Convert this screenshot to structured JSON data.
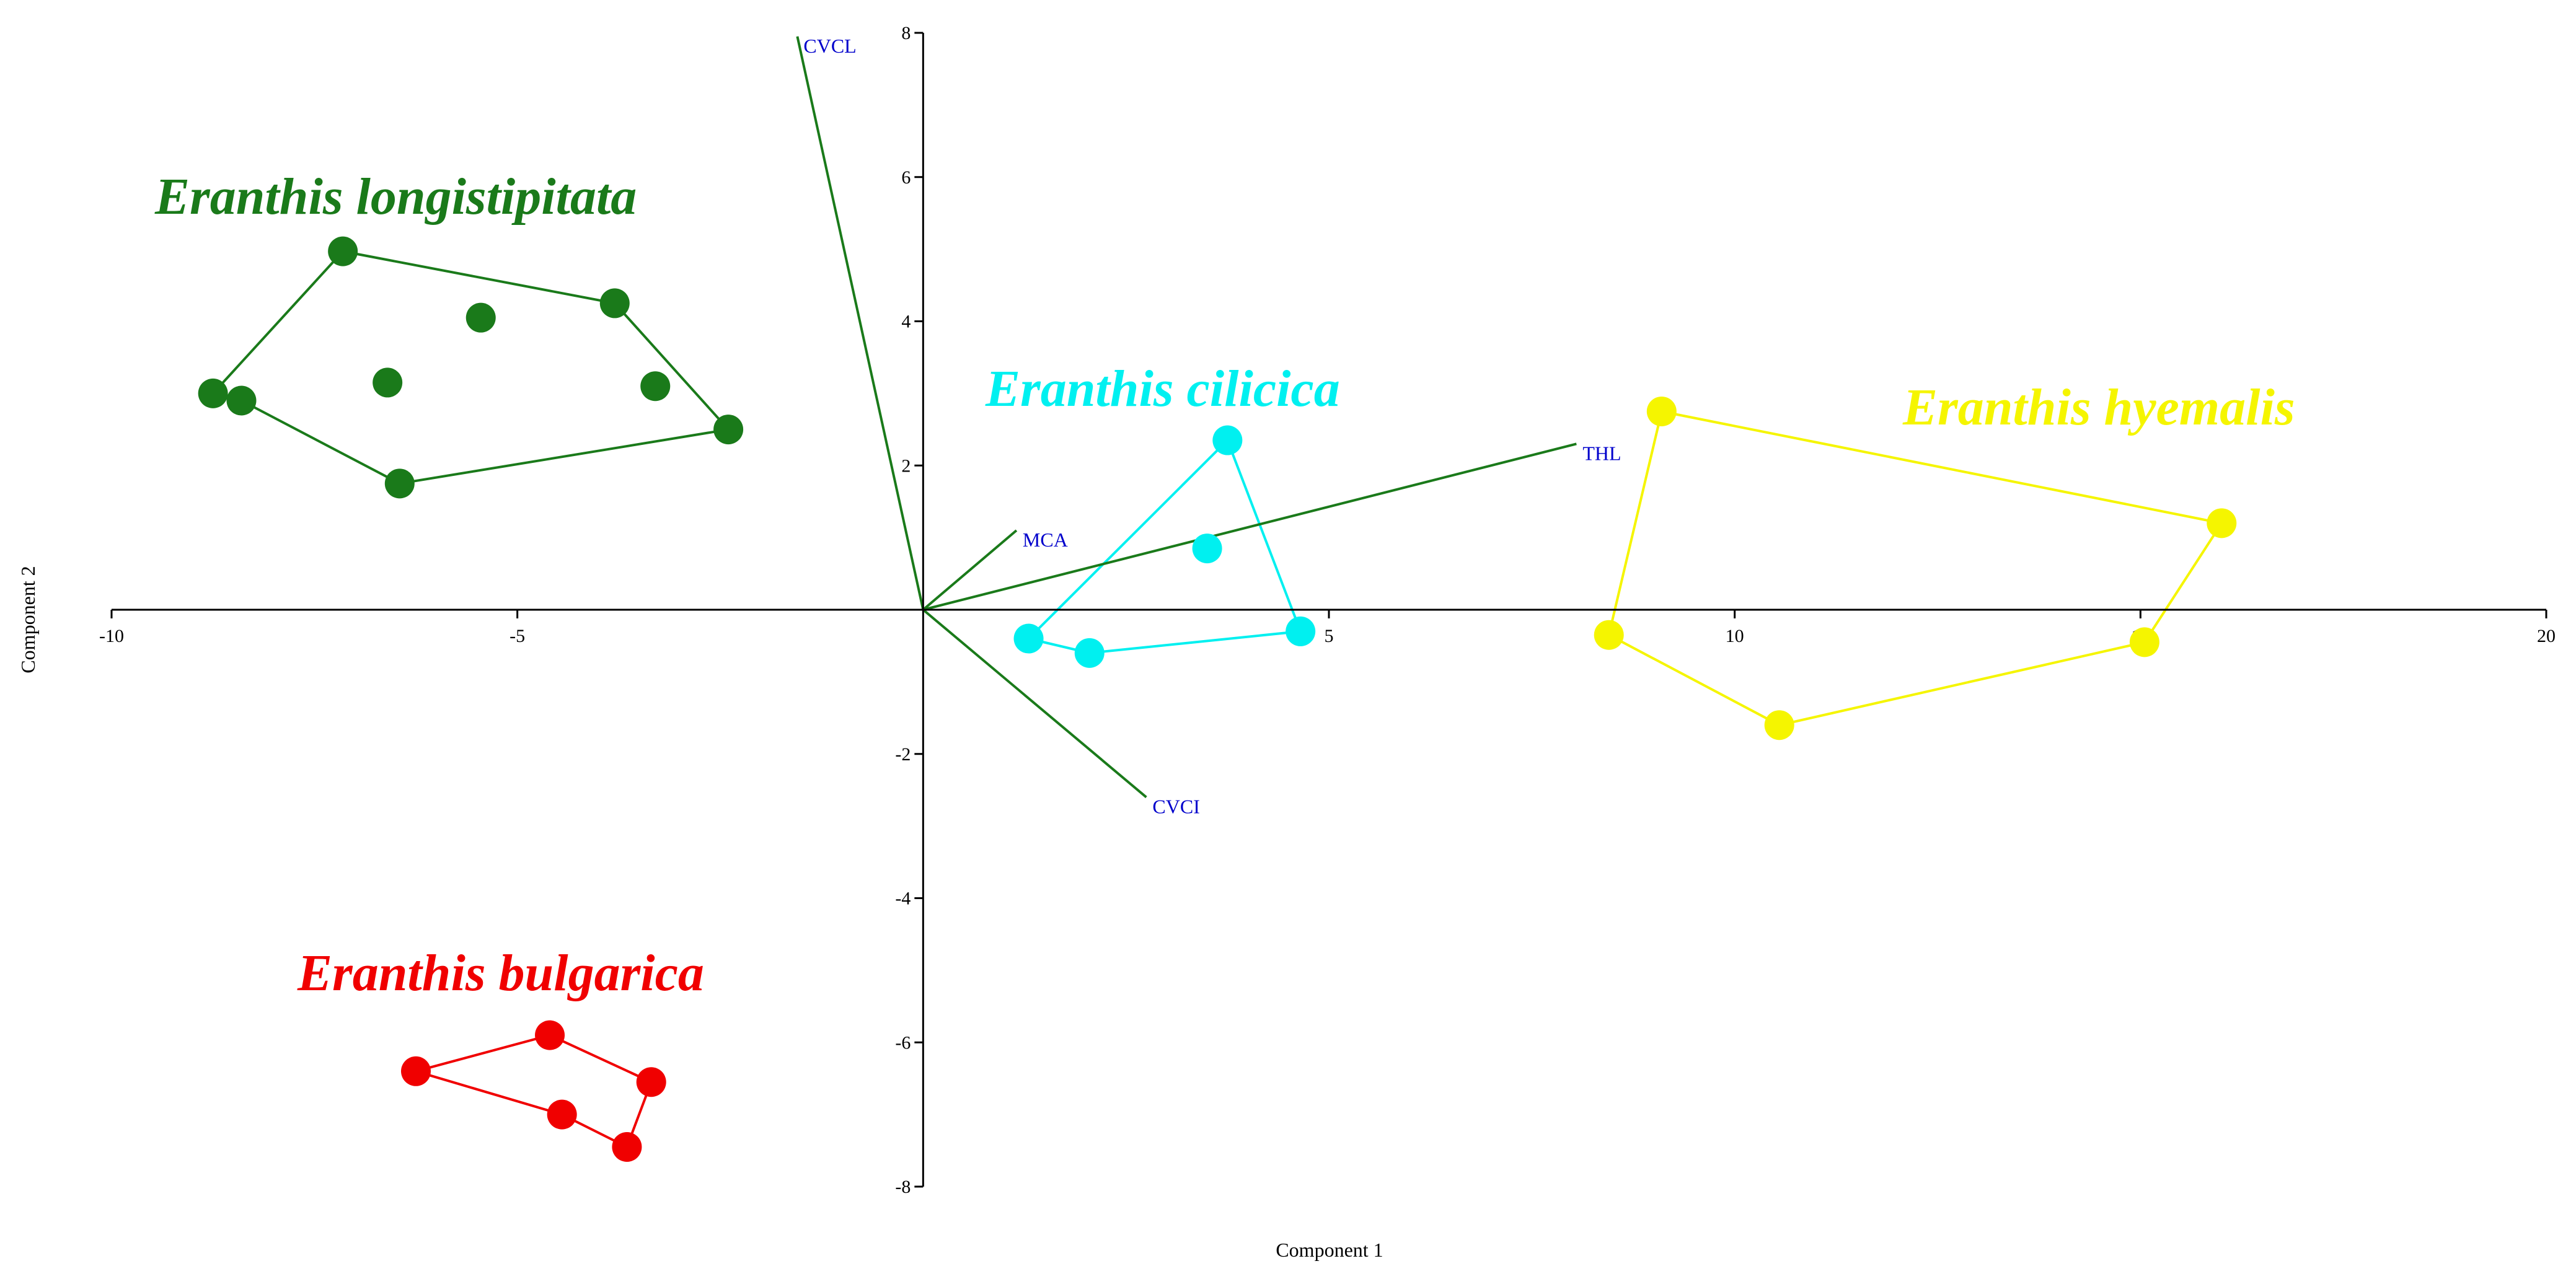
{
  "chart_data": {
    "type": "scatter",
    "title": "",
    "xlabel": "Component 1",
    "ylabel": "Component 2",
    "xlim": [
      -10,
      20
    ],
    "ylim": [
      -8,
      8
    ],
    "xticks": [
      -10,
      -5,
      5,
      10,
      15,
      20
    ],
    "yticks": [
      -8,
      -6,
      -4,
      -2,
      2,
      4,
      6,
      8
    ],
    "grid": false,
    "groups": [
      {
        "name": "Eranthis longistipitata",
        "color": "#1a7a1a",
        "points": [
          {
            "x": -8.75,
            "y": 3.0
          },
          {
            "x": -8.4,
            "y": 2.9
          },
          {
            "x": -7.15,
            "y": 4.97
          },
          {
            "x": -6.6,
            "y": 3.15
          },
          {
            "x": -6.45,
            "y": 1.75
          },
          {
            "x": -5.45,
            "y": 4.05
          },
          {
            "x": -3.8,
            "y": 4.25
          },
          {
            "x": -3.3,
            "y": 3.1
          },
          {
            "x": -2.4,
            "y": 2.5
          }
        ],
        "hull": [
          {
            "x": -8.75,
            "y": 3.0
          },
          {
            "x": -7.15,
            "y": 4.97
          },
          {
            "x": -3.8,
            "y": 4.25
          },
          {
            "x": -2.4,
            "y": 2.5
          },
          {
            "x": -6.45,
            "y": 1.75
          },
          {
            "x": -8.4,
            "y": 2.9
          }
        ]
      },
      {
        "name": "Eranthis cilicica",
        "color": "#00f0f0",
        "points": [
          {
            "x": 1.3,
            "y": -0.4
          },
          {
            "x": 2.05,
            "y": -0.6
          },
          {
            "x": 3.5,
            "y": 0.85
          },
          {
            "x": 3.75,
            "y": 2.35
          },
          {
            "x": 4.65,
            "y": -0.3
          }
        ],
        "hull": [
          {
            "x": 1.3,
            "y": -0.4
          },
          {
            "x": 3.75,
            "y": 2.35
          },
          {
            "x": 4.65,
            "y": -0.3
          },
          {
            "x": 2.05,
            "y": -0.6
          }
        ]
      },
      {
        "name": "Eranthis hyemalis",
        "color": "#f5f500",
        "points": [
          {
            "x": 8.45,
            "y": -0.35
          },
          {
            "x": 9.1,
            "y": 2.75
          },
          {
            "x": 10.55,
            "y": -1.6
          },
          {
            "x": 15.05,
            "y": -0.45
          },
          {
            "x": 16.0,
            "y": 1.2
          }
        ],
        "hull": [
          {
            "x": 9.1,
            "y": 2.75
          },
          {
            "x": 16.0,
            "y": 1.2
          },
          {
            "x": 15.05,
            "y": -0.45
          },
          {
            "x": 10.55,
            "y": -1.6
          },
          {
            "x": 8.45,
            "y": -0.35
          }
        ]
      },
      {
        "name": "Eranthis bulgarica",
        "color": "#f00000",
        "points": [
          {
            "x": -6.25,
            "y": -6.4
          },
          {
            "x": -4.6,
            "y": -5.9
          },
          {
            "x": -4.45,
            "y": -7.0
          },
          {
            "x": -3.65,
            "y": -7.45
          },
          {
            "x": -3.35,
            "y": -6.55
          }
        ],
        "hull": [
          {
            "x": -6.25,
            "y": -6.4
          },
          {
            "x": -4.6,
            "y": -5.9
          },
          {
            "x": -3.35,
            "y": -6.55
          },
          {
            "x": -3.65,
            "y": -7.45
          },
          {
            "x": -4.45,
            "y": -7.0
          }
        ]
      }
    ],
    "loadings": {
      "line_color": "#1a7a1a",
      "label_color": "#0000cc",
      "vectors": [
        {
          "name": "CVCL",
          "x": -1.55,
          "y": 7.95
        },
        {
          "name": "THL",
          "x": 8.05,
          "y": 2.3
        },
        {
          "name": "MCA",
          "x": 1.15,
          "y": 1.1
        },
        {
          "name": "CVCI",
          "x": 2.75,
          "y": -2.6
        }
      ]
    }
  }
}
